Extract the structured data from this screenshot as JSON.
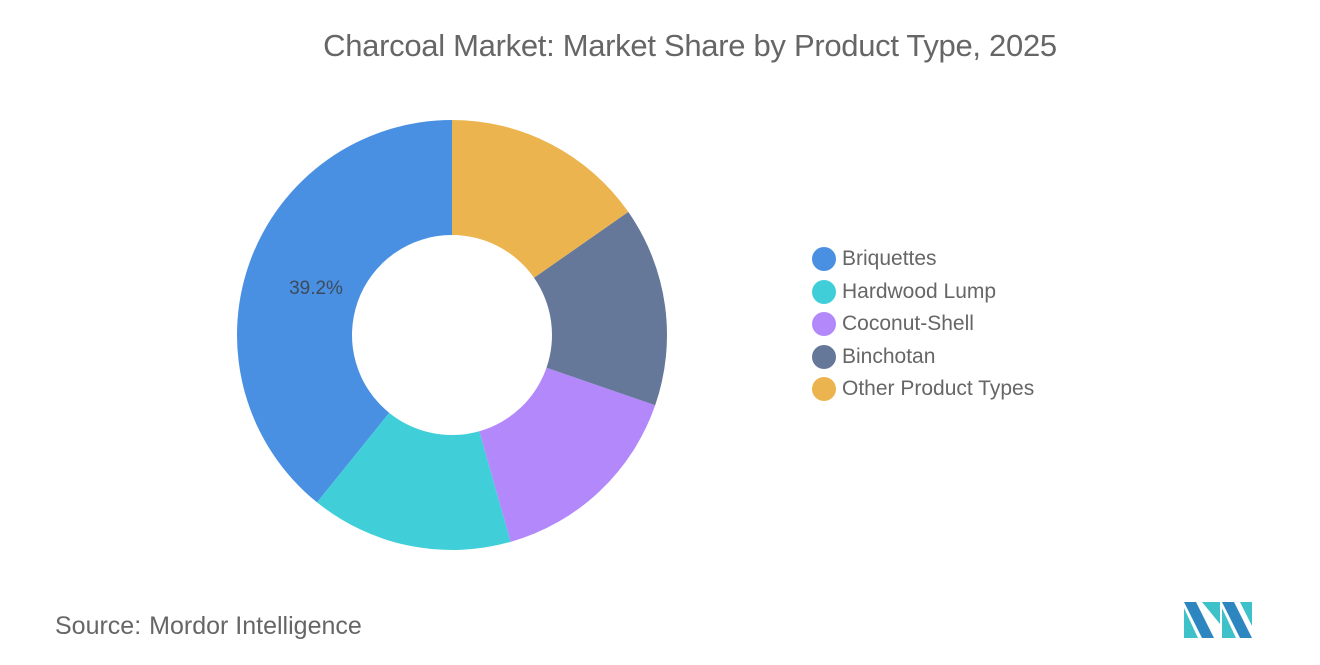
{
  "title": "Charcoal Market: Market Share by Product Type, 2025",
  "source": {
    "label": "Source:",
    "value": "Mordor Intelligence"
  },
  "logo": {
    "icon": "mordor-intelligence-logo-icon"
  },
  "chart_data": {
    "type": "pie",
    "subtype": "donut",
    "title": "Charcoal Market: Market Share by Product Type, 2025",
    "categories": [
      "Briquettes",
      "Hardwood Lump",
      "Coconut-Shell",
      "Binchotan",
      "Other Product Types"
    ],
    "values": [
      39.2,
      15.2,
      15.3,
      15.0,
      15.3
    ],
    "unit": "%",
    "colors": [
      "#4A90E2",
      "#40CFD9",
      "#B388FA",
      "#657899",
      "#EBB44E"
    ],
    "data_labels": [
      {
        "category": "Briquettes",
        "text": "39.2%"
      }
    ],
    "legend_position": "right",
    "start_angle": "top, drawn counter-clockwise from Briquettes"
  },
  "legend": {
    "items": [
      {
        "label": "Briquettes",
        "color": "#4A90E2"
      },
      {
        "label": "Hardwood Lump",
        "color": "#40CFD9"
      },
      {
        "label": "Coconut-Shell",
        "color": "#B388FA"
      },
      {
        "label": "Binchotan",
        "color": "#657899"
      },
      {
        "label": "Other Product Types",
        "color": "#EBB44E"
      }
    ]
  }
}
